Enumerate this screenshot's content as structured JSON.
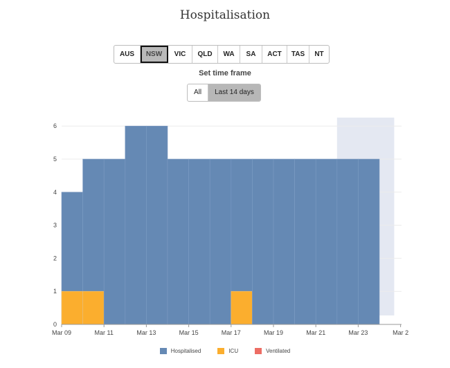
{
  "title": "Hospitalisation",
  "regions": [
    "AUS",
    "NSW",
    "VIC",
    "QLD",
    "WA",
    "SA",
    "ACT",
    "TAS",
    "NT"
  ],
  "active_region": "NSW",
  "timeframe": {
    "label": "Set time frame",
    "options": [
      "All",
      "Last 14 days"
    ],
    "active": "Last 14 days"
  },
  "colors": {
    "hospitalised": "#6589b4",
    "icu": "#fbae2e",
    "ventilated": "#ed6d64",
    "projection_shade": "#e4e8f2",
    "axis": "#999999",
    "text": "#444444"
  },
  "chart_data": {
    "type": "bar",
    "x": [
      "Mar 09",
      "Mar 10",
      "Mar 11",
      "Mar 12",
      "Mar 13",
      "Mar 14",
      "Mar 15",
      "Mar 16",
      "Mar 17",
      "Mar 18",
      "Mar 19",
      "Mar 20",
      "Mar 21",
      "Mar 22",
      "Mar 23"
    ],
    "series": [
      {
        "name": "Hospitalised",
        "values": [
          4,
          5,
          5,
          6,
          6,
          5,
          5,
          5,
          5,
          5,
          5,
          5,
          5,
          5,
          5
        ]
      },
      {
        "name": "ICU",
        "values": [
          1,
          1,
          0,
          0,
          0,
          0,
          0,
          0,
          1,
          0,
          0,
          0,
          0,
          0,
          0
        ]
      },
      {
        "name": "Ventilated",
        "values": [
          0,
          0,
          0,
          0,
          0,
          0,
          0,
          0,
          0,
          0,
          0,
          0,
          0,
          0,
          0
        ]
      }
    ],
    "x_ticks": [
      "Mar 09",
      "Mar 11",
      "Mar 13",
      "Mar 15",
      "Mar 17",
      "Mar 19",
      "Mar 21",
      "Mar 23",
      "Mar 2"
    ],
    "y_ticks": [
      0,
      1,
      2,
      3,
      4,
      5,
      6
    ],
    "ylim": [
      0,
      6.25
    ],
    "xlim_days": [
      0,
      16
    ],
    "shaded_region": {
      "from": "Mar 22",
      "to": "Mar 25"
    },
    "grid": true,
    "legend_position": "bottom"
  }
}
